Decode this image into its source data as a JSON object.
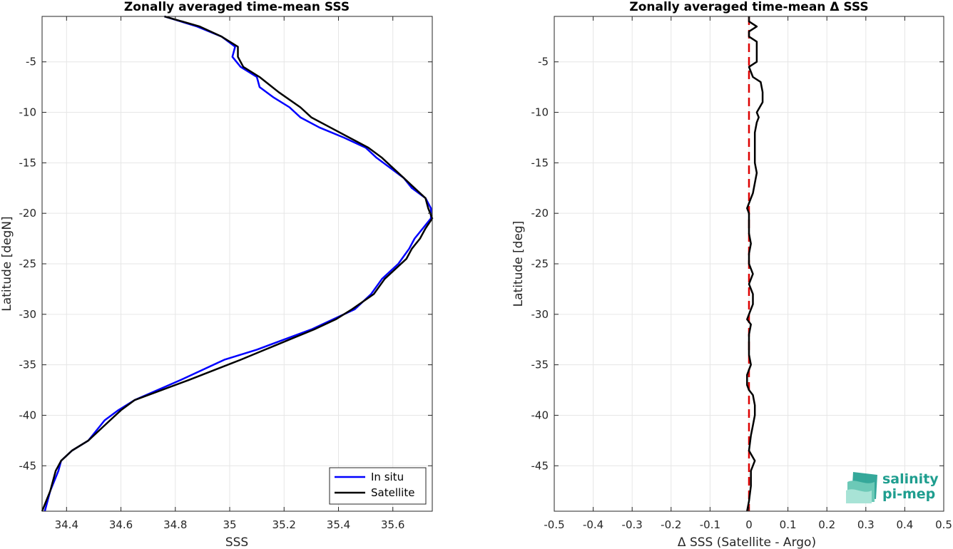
{
  "chart_data": [
    {
      "type": "line",
      "title": "Zonally averaged time-mean SSS",
      "xlabel": "SSS",
      "ylabel": "Latitude [degN]",
      "xlim": [
        34.31,
        35.745
      ],
      "ylim": [
        -49.5,
        -0.5
      ],
      "xticks": [
        34.4,
        34.6,
        34.8,
        35,
        35.2,
        35.4,
        35.6
      ],
      "xtick_labels": [
        "34.4",
        "34.6",
        "34.8",
        "35",
        "35.2",
        "35.4",
        "35.6"
      ],
      "yticks": [
        -5,
        -10,
        -15,
        -20,
        -25,
        -30,
        -35,
        -40,
        -45
      ],
      "ytick_labels": [
        "-5",
        "-10",
        "-15",
        "-20",
        "-25",
        "-30",
        "-35",
        "-40",
        "-45"
      ],
      "grid": true,
      "legend": "bottom-right",
      "series": [
        {
          "name": "In situ",
          "color": "#0000ff",
          "x": [
            34.76,
            34.88,
            34.97,
            35.02,
            35.01,
            35.04,
            35.1,
            35.11,
            35.16,
            35.22,
            35.26,
            35.33,
            35.42,
            35.5,
            35.54,
            35.59,
            35.64,
            35.67,
            35.72,
            35.74,
            35.74,
            35.68,
            35.66,
            35.62,
            35.56,
            35.52,
            35.46,
            35.38,
            35.3,
            35.2,
            35.1,
            34.98,
            34.82,
            34.65,
            34.59,
            34.54,
            34.48,
            34.42,
            34.38,
            34.37,
            34.34,
            34.32
          ],
          "y": [
            -0.5,
            -1.5,
            -2.5,
            -3.5,
            -4.5,
            -5.5,
            -6.5,
            -7.5,
            -8.5,
            -9.5,
            -10.5,
            -11.5,
            -12.5,
            -13.5,
            -14.5,
            -15.5,
            -16.5,
            -17.5,
            -18.5,
            -19.5,
            -20.5,
            -22.5,
            -23.5,
            -25.0,
            -26.5,
            -28.0,
            -29.5,
            -30.5,
            -31.5,
            -32.5,
            -33.5,
            -34.5,
            -36.5,
            -38.5,
            -39.5,
            -40.5,
            -42.5,
            -43.5,
            -44.5,
            -45.5,
            -47.5,
            -49.5
          ]
        },
        {
          "name": "Satellite",
          "color": "#000000",
          "x": [
            34.76,
            34.89,
            34.97,
            35.03,
            35.03,
            35.05,
            35.11,
            35.18,
            35.26,
            35.3,
            35.37,
            35.44,
            35.51,
            35.56,
            35.6,
            35.64,
            35.68,
            35.72,
            35.73,
            35.745,
            35.72,
            35.7,
            35.67,
            35.65,
            35.57,
            35.53,
            35.45,
            35.39,
            35.31,
            35.22,
            35.13,
            35.04,
            34.85,
            34.65,
            34.6,
            34.56,
            34.48,
            34.42,
            34.38,
            34.36,
            34.34,
            34.31
          ],
          "y": [
            -0.5,
            -1.5,
            -2.5,
            -3.5,
            -4.5,
            -5.5,
            -6.5,
            -8.0,
            -9.5,
            -10.5,
            -11.5,
            -12.5,
            -13.5,
            -14.5,
            -15.5,
            -16.5,
            -17.5,
            -18.5,
            -19.5,
            -20.5,
            -21.5,
            -22.5,
            -23.5,
            -24.5,
            -26.5,
            -28.0,
            -29.5,
            -30.5,
            -31.5,
            -32.5,
            -33.5,
            -34.5,
            -36.5,
            -38.5,
            -39.5,
            -40.5,
            -42.5,
            -43.5,
            -44.5,
            -45.5,
            -47.5,
            -49.5
          ]
        }
      ]
    },
    {
      "type": "line",
      "title": "Zonally averaged time-mean Δ SSS",
      "xlabel": "Δ SSS (Satellite - Argo)",
      "ylabel": "Latitude [deg]",
      "xlim": [
        -0.5,
        0.5
      ],
      "ylim": [
        -49.5,
        -0.5
      ],
      "xticks": [
        -0.5,
        -0.4,
        -0.3,
        -0.2,
        -0.1,
        0,
        0.1,
        0.2,
        0.3,
        0.4,
        0.5
      ],
      "xtick_labels": [
        "-0.5",
        "-0.4",
        "-0.3",
        "-0.2",
        "-0.1",
        "0",
        "0.1",
        "0.2",
        "0.3",
        "0.4",
        "0.5"
      ],
      "yticks": [
        -5,
        -10,
        -15,
        -20,
        -25,
        -30,
        -35,
        -40,
        -45
      ],
      "ytick_labels": [
        "-5",
        "-10",
        "-15",
        "-20",
        "-25",
        "-30",
        "-35",
        "-40",
        "-45"
      ],
      "grid": true,
      "reference_line": {
        "x": 0,
        "color": "#dd0000",
        "style": "dashed"
      },
      "series": [
        {
          "color": "#000000",
          "x": [
            0.0,
            0.0,
            0.02,
            0.0,
            0.0,
            0.02,
            0.02,
            0.02,
            0.0,
            0.01,
            0.03,
            0.035,
            0.035,
            0.02,
            0.025,
            0.02,
            0.015,
            0.015,
            0.015,
            0.015,
            0.02,
            0.015,
            0.01,
            0.0,
            -0.005,
            0.0,
            0.0,
            0.005,
            0.0,
            0.0,
            0.01,
            0.0,
            0.01,
            0.01,
            0.0,
            -0.005,
            0.005,
            0.0,
            0.0,
            0.0,
            0.005,
            -0.005,
            -0.005,
            0.0,
            0.01,
            0.015,
            0.015,
            0.01,
            0.005,
            0.0,
            0.015,
            0.005,
            0.005,
            0.0,
            -0.005
          ],
          "y": [
            -0.5,
            -1.0,
            -1.5,
            -2.0,
            -2.5,
            -3.0,
            -4.0,
            -5.0,
            -5.5,
            -6.5,
            -7.0,
            -8.0,
            -9.0,
            -10.0,
            -10.5,
            -11.0,
            -12.0,
            -13.0,
            -14.0,
            -15.0,
            -16.0,
            -17.0,
            -18.0,
            -19.0,
            -19.5,
            -20.0,
            -22.0,
            -23.0,
            -24.0,
            -25.0,
            -26.0,
            -27.0,
            -28.0,
            -29.0,
            -30.0,
            -30.5,
            -31.0,
            -32.0,
            -33.0,
            -34.0,
            -35.0,
            -36.0,
            -37.0,
            -37.5,
            -38.0,
            -39.0,
            -40.0,
            -41.0,
            -42.0,
            -43.5,
            -44.5,
            -45.5,
            -47.0,
            -48.5,
            -49.5
          ]
        }
      ]
    }
  ],
  "logo": {
    "line1": "salinity",
    "line2": "pi-mep",
    "colors": [
      "#1f9e8f",
      "#8fd6c6"
    ],
    "icon": "waves-logo-icon"
  }
}
